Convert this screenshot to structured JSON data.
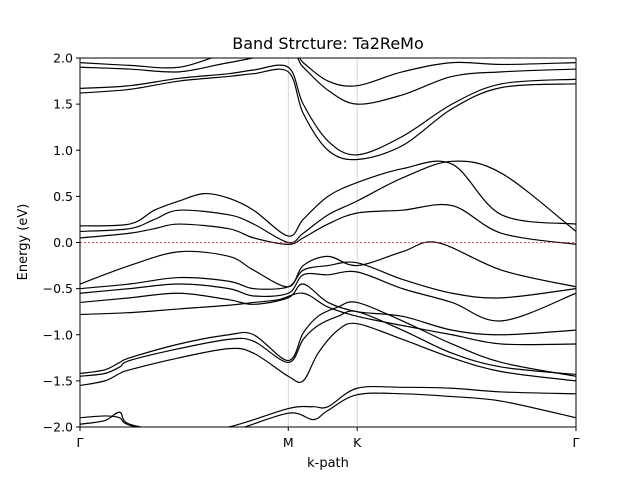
{
  "chart_data": {
    "type": "line",
    "title": "Band Strcture: Ta2ReMo",
    "xlabel": "k-path",
    "ylabel": "Energy (eV)",
    "ylim": [
      -2.0,
      2.0
    ],
    "yticks": [
      -2.0,
      -1.5,
      -1.0,
      -0.5,
      0.0,
      0.5,
      1.0,
      1.5,
      2.0
    ],
    "ytick_labels": [
      "−2.0",
      "−1.5",
      "−1.0",
      "−0.5",
      "0.0",
      "0.5",
      "1.0",
      "1.5",
      "2.0"
    ],
    "xlim": [
      0,
      1
    ],
    "high_symmetry_points": [
      {
        "label": "Γ",
        "x": 0.0
      },
      {
        "label": "M",
        "x": 0.4199
      },
      {
        "label": "K",
        "x": 0.5588
      },
      {
        "label": "Γ",
        "x": 1.0
      }
    ],
    "fermi_level": 0.0,
    "fermi_color": "#e31a1c",
    "band_color": "#000000",
    "vline_color": "#cccccc",
    "series": [
      {
        "x": [
          0,
          0.05,
          0.08,
          0.1,
          0.2,
          0.3,
          0.4199,
          0.47,
          0.5,
          0.5588,
          0.65,
          0.75,
          0.85,
          1.0
        ],
        "values": [
          -1.97,
          -1.93,
          -1.84,
          -1.97,
          -2.05,
          -2.0,
          -1.8,
          -1.78,
          -1.78,
          -1.58,
          -1.57,
          -1.58,
          -1.62,
          -1.64
        ]
      },
      {
        "x": [
          0,
          0.05,
          0.08,
          0.1,
          0.2,
          0.3,
          0.4199,
          0.47,
          0.5,
          0.5588,
          0.65,
          0.75,
          0.85,
          1.0
        ],
        "values": [
          -1.9,
          -1.88,
          -1.9,
          -1.98,
          -2.1,
          -2.05,
          -1.85,
          -1.92,
          -1.82,
          -1.65,
          -1.64,
          -1.67,
          -1.72,
          -1.9
        ]
      },
      {
        "x": [
          0,
          0.05,
          0.08,
          0.1,
          0.2,
          0.3,
          0.35,
          0.4199,
          0.45,
          0.48,
          0.52,
          0.5588,
          0.65,
          0.75,
          0.85,
          1.0
        ],
        "values": [
          -1.42,
          -1.38,
          -1.3,
          -1.25,
          -1.1,
          -1.0,
          -1.0,
          -1.28,
          -0.98,
          -0.8,
          -0.7,
          -0.65,
          -0.85,
          -1.1,
          -1.3,
          -1.45
        ]
      },
      {
        "x": [
          0,
          0.05,
          0.08,
          0.1,
          0.2,
          0.3,
          0.35,
          0.4199,
          0.45,
          0.48,
          0.52,
          0.5588,
          0.65,
          0.75,
          0.85,
          1.0
        ],
        "values": [
          -1.45,
          -1.42,
          -1.35,
          -1.28,
          -1.15,
          -1.05,
          -1.07,
          -1.3,
          -1.05,
          -0.9,
          -0.8,
          -0.75,
          -0.95,
          -1.2,
          -1.35,
          -1.43
        ]
      },
      {
        "x": [
          0,
          0.05,
          0.08,
          0.1,
          0.2,
          0.3,
          0.35,
          0.4199,
          0.45,
          0.48,
          0.52,
          0.5588,
          0.65,
          0.75,
          0.85,
          1.0
        ],
        "values": [
          -1.55,
          -1.5,
          -1.42,
          -1.38,
          -1.25,
          -1.15,
          -1.2,
          -1.45,
          -1.5,
          -1.2,
          -0.95,
          -0.88,
          -1.05,
          -1.25,
          -1.4,
          -1.5
        ]
      },
      {
        "x": [
          0,
          0.1,
          0.2,
          0.3,
          0.35,
          0.4,
          0.45,
          0.5,
          0.5588,
          0.65,
          0.75,
          0.85,
          1.0
        ],
        "values": [
          -0.78,
          -0.76,
          -0.72,
          -0.68,
          -0.65,
          -0.62,
          -0.55,
          -0.7,
          -0.8,
          -0.9,
          -1.0,
          -1.1,
          -1.1
        ]
      },
      {
        "x": [
          0,
          0.1,
          0.2,
          0.3,
          0.35,
          0.4199,
          0.45,
          0.5,
          0.5588,
          0.65,
          0.75,
          0.85,
          1.0
        ],
        "values": [
          -0.65,
          -0.6,
          -0.55,
          -0.62,
          -0.67,
          -0.6,
          -0.45,
          -0.65,
          -0.75,
          -0.8,
          -0.95,
          -1.0,
          -0.95
        ]
      },
      {
        "x": [
          0,
          0.1,
          0.2,
          0.3,
          0.35,
          0.4199,
          0.45,
          0.5,
          0.5588,
          0.65,
          0.75,
          0.85,
          1.0
        ],
        "values": [
          -0.55,
          -0.5,
          -0.45,
          -0.5,
          -0.58,
          -0.55,
          -0.35,
          -0.35,
          -0.32,
          -0.5,
          -0.65,
          -0.85,
          -0.55
        ]
      },
      {
        "x": [
          0,
          0.1,
          0.2,
          0.3,
          0.35,
          0.4199,
          0.45,
          0.5,
          0.5588,
          0.65,
          0.75,
          0.85,
          1.0
        ],
        "values": [
          -0.5,
          -0.45,
          -0.38,
          -0.42,
          -0.5,
          -0.48,
          -0.3,
          -0.25,
          -0.22,
          -0.4,
          -0.55,
          -0.6,
          -0.5
        ]
      },
      {
        "x": [
          0,
          0.1,
          0.2,
          0.3,
          0.35,
          0.4199,
          0.45,
          0.5,
          0.5588,
          0.65,
          0.72,
          0.85,
          1.0
        ],
        "values": [
          -0.45,
          -0.25,
          -0.1,
          -0.15,
          -0.3,
          -0.48,
          -0.25,
          -0.15,
          -0.25,
          -0.1,
          0.0,
          -0.3,
          -0.48
        ]
      },
      {
        "x": [
          0,
          0.1,
          0.15,
          0.2,
          0.3,
          0.35,
          0.4199,
          0.45,
          0.5,
          0.5588,
          0.65,
          0.75,
          0.85,
          1.0
        ],
        "values": [
          0.12,
          0.15,
          0.25,
          0.35,
          0.3,
          0.2,
          0.0,
          0.1,
          0.3,
          0.45,
          0.7,
          0.88,
          0.75,
          0.12
        ]
      },
      {
        "x": [
          0,
          0.1,
          0.15,
          0.2,
          0.3,
          0.35,
          0.4199,
          0.45,
          0.5,
          0.5588,
          0.65,
          0.75,
          0.85,
          1.0
        ],
        "values": [
          0.05,
          0.1,
          0.15,
          0.2,
          0.15,
          0.05,
          -0.02,
          0.05,
          0.2,
          0.32,
          0.35,
          0.4,
          0.1,
          -0.02
        ]
      },
      {
        "x": [
          0,
          0.1,
          0.15,
          0.2,
          0.25,
          0.3,
          0.35,
          0.4199,
          0.45,
          0.5,
          0.5588,
          0.65,
          0.75,
          0.85,
          1.0
        ],
        "values": [
          0.18,
          0.2,
          0.35,
          0.45,
          0.53,
          0.48,
          0.35,
          0.07,
          0.25,
          0.5,
          0.65,
          0.8,
          0.85,
          0.3,
          0.2
        ]
      },
      {
        "x": [
          0,
          0.1,
          0.2,
          0.3,
          0.35,
          0.4199,
          0.45,
          0.5,
          0.5588,
          0.65,
          0.75,
          0.85,
          1.0
        ],
        "values": [
          1.62,
          1.66,
          1.75,
          1.8,
          1.83,
          1.85,
          1.4,
          1.0,
          0.9,
          1.05,
          1.45,
          1.68,
          1.72
        ]
      },
      {
        "x": [
          0,
          0.1,
          0.2,
          0.3,
          0.35,
          0.4199,
          0.45,
          0.5,
          0.5588,
          0.65,
          0.75,
          0.85,
          1.0
        ],
        "values": [
          1.67,
          1.7,
          1.78,
          1.83,
          1.87,
          1.9,
          1.5,
          1.1,
          0.95,
          1.15,
          1.5,
          1.72,
          1.77
        ]
      },
      {
        "x": [
          0,
          0.1,
          0.2,
          0.3,
          0.4199,
          0.45,
          0.5,
          0.5588,
          0.65,
          0.75,
          0.85,
          1.0
        ],
        "values": [
          1.9,
          1.88,
          1.85,
          1.95,
          2.05,
          1.9,
          1.65,
          1.5,
          1.6,
          1.8,
          1.85,
          1.88
        ]
      },
      {
        "x": [
          0,
          0.1,
          0.2,
          0.3,
          0.4199,
          0.45,
          0.5,
          0.5588,
          0.65,
          0.75,
          0.85,
          1.0
        ],
        "values": [
          1.95,
          1.92,
          1.9,
          2.05,
          2.1,
          1.95,
          1.75,
          1.7,
          1.85,
          1.95,
          1.93,
          1.95
        ]
      }
    ]
  }
}
